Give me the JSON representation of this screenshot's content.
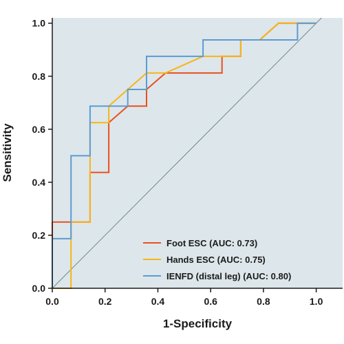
{
  "chart_data": {
    "type": "line",
    "xlabel": "1-Specificity",
    "ylabel": "Sensitivity",
    "xlim": [
      0,
      1.1
    ],
    "ylim": [
      0,
      1.02
    ],
    "xticks": [
      "0.0",
      "0.2",
      "0.4",
      "0.6",
      "0.8",
      "1.0"
    ],
    "yticks": [
      "0.0",
      "0.2",
      "0.4",
      "0.6",
      "0.8",
      "1.0"
    ],
    "grid": false,
    "legend_position": "bottom-right",
    "plot_background": "#dde6ea",
    "reference_line": {
      "color": "#6f8a8a",
      "from": [
        0,
        0
      ],
      "to": [
        1.1,
        1.1
      ]
    },
    "series": [
      {
        "name": "Foot ESC (AUC: 0.73)",
        "color": "#e8501e",
        "points": [
          [
            0,
            0
          ],
          [
            0,
            0.25
          ],
          [
            0.071,
            0.25
          ],
          [
            0.143,
            0.25
          ],
          [
            0.143,
            0.437
          ],
          [
            0.214,
            0.437
          ],
          [
            0.214,
            0.625
          ],
          [
            0.286,
            0.687
          ],
          [
            0.357,
            0.687
          ],
          [
            0.357,
            0.75
          ],
          [
            0.429,
            0.812
          ],
          [
            0.643,
            0.812
          ],
          [
            0.643,
            0.875
          ],
          [
            0.714,
            0.875
          ],
          [
            0.714,
            0.937
          ],
          [
            0.786,
            0.937
          ],
          [
            0.857,
            1.0
          ],
          [
            1.0,
            1.0
          ]
        ]
      },
      {
        "name": "Hands ESC (AUC: 0.75)",
        "color": "#f7b517",
        "points": [
          [
            0,
            0
          ],
          [
            0.071,
            0
          ],
          [
            0.071,
            0.25
          ],
          [
            0.143,
            0.25
          ],
          [
            0.143,
            0.625
          ],
          [
            0.214,
            0.625
          ],
          [
            0.214,
            0.687
          ],
          [
            0.286,
            0.75
          ],
          [
            0.357,
            0.812
          ],
          [
            0.429,
            0.812
          ],
          [
            0.571,
            0.875
          ],
          [
            0.714,
            0.875
          ],
          [
            0.714,
            0.937
          ],
          [
            0.786,
            0.937
          ],
          [
            0.857,
            1.0
          ],
          [
            1.0,
            1.0
          ]
        ]
      },
      {
        "name": "IENFD (distal leg) (AUC: 0.80)",
        "color": "#5b9bd5",
        "points": [
          [
            0,
            0
          ],
          [
            0,
            0.187
          ],
          [
            0.071,
            0.187
          ],
          [
            0.071,
            0.5
          ],
          [
            0.143,
            0.5
          ],
          [
            0.143,
            0.687
          ],
          [
            0.286,
            0.687
          ],
          [
            0.286,
            0.75
          ],
          [
            0.357,
            0.75
          ],
          [
            0.357,
            0.875
          ],
          [
            0.571,
            0.875
          ],
          [
            0.571,
            0.937
          ],
          [
            0.929,
            0.937
          ],
          [
            0.929,
            1.0
          ],
          [
            1.0,
            1.0
          ]
        ]
      }
    ]
  }
}
